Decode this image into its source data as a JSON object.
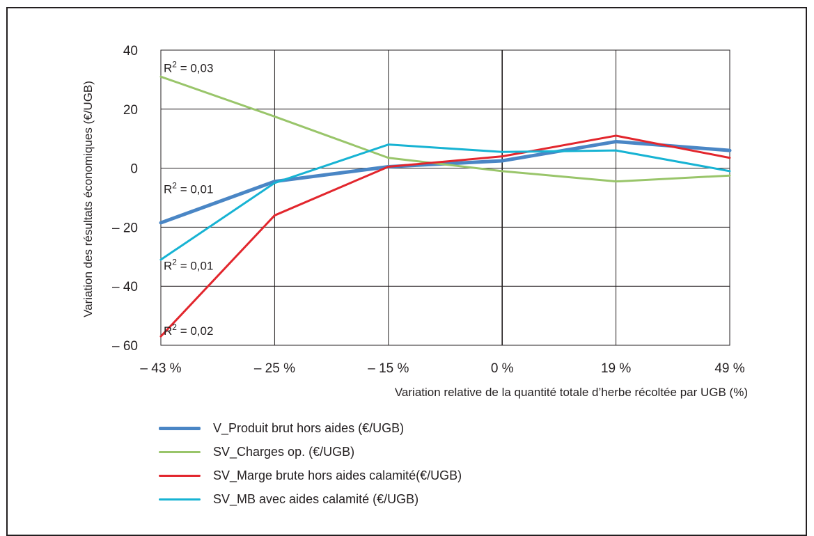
{
  "chart_data": {
    "type": "line",
    "title": "",
    "xlabel": "Variation relative de la quantité totale d’herbe récoltée par UGB (%)",
    "ylabel": "Variation des résultats économiques (€/UGB)",
    "categories": [
      "– 43 %",
      "– 25 %",
      "– 15 %",
      "0 %",
      "19 %",
      "49 %"
    ],
    "yticks": [
      40,
      20,
      0,
      -20,
      -40,
      -60
    ],
    "ytick_labels": [
      "40",
      "20",
      "0",
      "– 20",
      "– 40",
      "– 60"
    ],
    "ylim": [
      -60,
      40
    ],
    "grid": true,
    "legend_position": "bottom",
    "series": [
      {
        "name": "V_Produit brut hors aides (€/UGB)",
        "color": "#4a86c5",
        "width": 5,
        "values": [
          -18.5,
          -4.5,
          0.5,
          2.5,
          9,
          6
        ]
      },
      {
        "name": "SV_Charges op. (€/UGB)",
        "color": "#99c56a",
        "width": 3,
        "values": [
          31,
          17.5,
          3.5,
          -1,
          -4.5,
          -2.5
        ]
      },
      {
        "name": "SV_Marge brute hors aides calamité(€/UGB)",
        "color": "#e2262d",
        "width": 3,
        "values": [
          -57,
          -16,
          0.5,
          4,
          11,
          3.5
        ]
      },
      {
        "name": "SV_MB avec aides calamité (€/UGB)",
        "color": "#17b3d3",
        "width": 3,
        "values": [
          -31,
          -5,
          8,
          5.5,
          6,
          -1
        ]
      }
    ],
    "annotations": [
      {
        "text": "R",
        "sup": "2",
        "rest": " = 0,03",
        "x": "– 43 %",
        "y": 34
      },
      {
        "text": "R",
        "sup": "2",
        "rest": " = 0,01",
        "x": "– 43 %",
        "y": -7
      },
      {
        "text": "R",
        "sup": "2",
        "rest": " = 0,01",
        "x": "– 43 %",
        "y": -33
      },
      {
        "text": "R",
        "sup": "2",
        "rest": " = 0,02",
        "x": "– 43 %",
        "y": -55
      }
    ]
  }
}
